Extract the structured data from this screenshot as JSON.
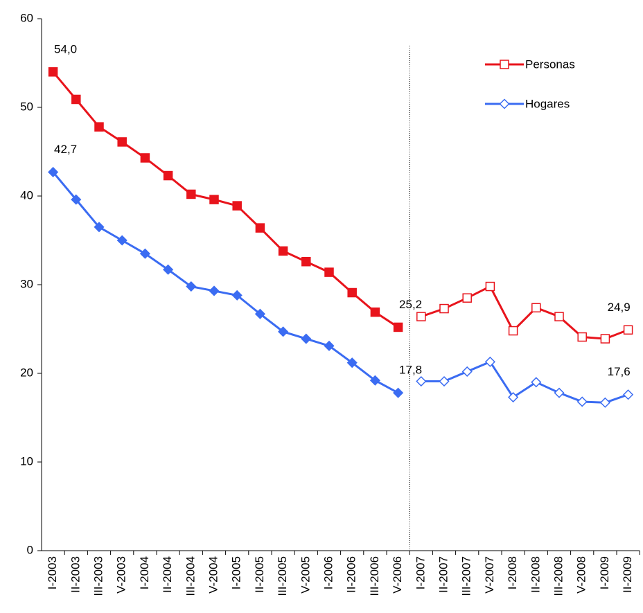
{
  "chart_data": {
    "type": "line",
    "categories": [
      "I-2003",
      "II-2003",
      "III-2003",
      "V-2003",
      "I-2004",
      "II-2004",
      "III-2004",
      "V-2004",
      "I-2005",
      "II-2005",
      "III-2005",
      "V-2005",
      "I-2006",
      "II-2006",
      "III-2006",
      "V-2006",
      "I-2007",
      "II-2007",
      "III-2007",
      "V-2007",
      "I-2008",
      "II-2008",
      "III-2008",
      "V-2008",
      "I-2009",
      "II-2009"
    ],
    "series": [
      {
        "name": "Personas",
        "color": "#e8141c",
        "marker": "square",
        "filled": true,
        "legend": false,
        "values": [
          54.0,
          50.9,
          47.8,
          46.1,
          44.3,
          42.3,
          40.2,
          39.6,
          38.9,
          36.4,
          33.8,
          32.6,
          31.4,
          29.1,
          26.9,
          25.2,
          null,
          null,
          null,
          null,
          null,
          null,
          null,
          null,
          null,
          null
        ],
        "value_labels": [
          "54,0",
          null,
          null,
          null,
          null,
          null,
          null,
          null,
          null,
          null,
          null,
          null,
          null,
          null,
          null,
          "25,2",
          null,
          null,
          null,
          null,
          null,
          null,
          null,
          null,
          null,
          null
        ]
      },
      {
        "name": "Hogares",
        "color": "#3b6cf2",
        "marker": "diamond",
        "filled": true,
        "legend": false,
        "values": [
          42.7,
          39.6,
          36.5,
          35.0,
          33.5,
          31.7,
          29.8,
          29.3,
          28.8,
          26.7,
          24.7,
          23.9,
          23.1,
          21.2,
          19.2,
          17.8,
          null,
          null,
          null,
          null,
          null,
          null,
          null,
          null,
          null,
          null
        ],
        "value_labels": [
          "42,7",
          null,
          null,
          null,
          null,
          null,
          null,
          null,
          null,
          null,
          null,
          null,
          null,
          null,
          null,
          "17,8",
          null,
          null,
          null,
          null,
          null,
          null,
          null,
          null,
          null,
          null
        ]
      },
      {
        "name": "Personas",
        "color": "#e8141c",
        "marker": "square",
        "filled": false,
        "legend": true,
        "values": [
          null,
          null,
          null,
          null,
          null,
          null,
          null,
          null,
          null,
          null,
          null,
          null,
          null,
          null,
          null,
          null,
          26.4,
          27.3,
          28.5,
          29.8,
          24.8,
          27.4,
          26.4,
          24.1,
          23.9,
          24.9
        ],
        "value_labels": [
          null,
          null,
          null,
          null,
          null,
          null,
          null,
          null,
          null,
          null,
          null,
          null,
          null,
          null,
          null,
          null,
          null,
          null,
          null,
          null,
          null,
          null,
          null,
          null,
          null,
          "24,9"
        ]
      },
      {
        "name": "Hogares",
        "color": "#3b6cf2",
        "marker": "diamond",
        "filled": false,
        "legend": true,
        "values": [
          null,
          null,
          null,
          null,
          null,
          null,
          null,
          null,
          null,
          null,
          null,
          null,
          null,
          null,
          null,
          null,
          19.1,
          19.1,
          20.2,
          21.3,
          17.3,
          19.0,
          17.8,
          16.8,
          16.7,
          17.6
        ],
        "value_labels": [
          null,
          null,
          null,
          null,
          null,
          null,
          null,
          null,
          null,
          null,
          null,
          null,
          null,
          null,
          null,
          null,
          null,
          null,
          null,
          null,
          null,
          null,
          null,
          null,
          null,
          "17,6"
        ]
      }
    ],
    "ylim": [
      0,
      60
    ],
    "yticks": [
      0,
      10,
      20,
      30,
      40,
      50,
      60
    ],
    "grid": false,
    "divider": true,
    "legend_position": "upper right"
  }
}
